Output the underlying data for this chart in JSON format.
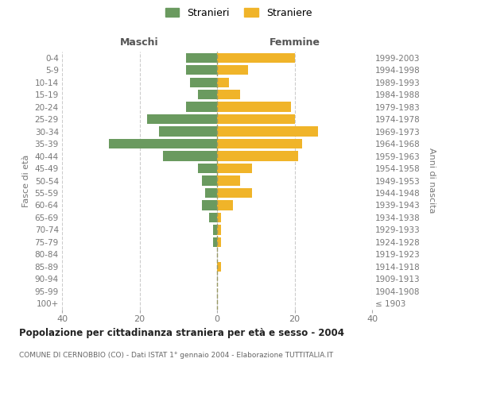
{
  "age_groups": [
    "100+",
    "95-99",
    "90-94",
    "85-89",
    "80-84",
    "75-79",
    "70-74",
    "65-69",
    "60-64",
    "55-59",
    "50-54",
    "45-49",
    "40-44",
    "35-39",
    "30-34",
    "25-29",
    "20-24",
    "15-19",
    "10-14",
    "5-9",
    "0-4"
  ],
  "birth_years": [
    "≤ 1903",
    "1904-1908",
    "1909-1913",
    "1914-1918",
    "1919-1923",
    "1924-1928",
    "1929-1933",
    "1934-1938",
    "1939-1943",
    "1944-1948",
    "1949-1953",
    "1954-1958",
    "1959-1963",
    "1964-1968",
    "1969-1973",
    "1974-1978",
    "1979-1983",
    "1984-1988",
    "1989-1993",
    "1994-1998",
    "1999-2003"
  ],
  "maschi": [
    0,
    0,
    0,
    0,
    0,
    1,
    1,
    2,
    4,
    3,
    4,
    5,
    14,
    28,
    15,
    18,
    8,
    5,
    7,
    8,
    8
  ],
  "femmine": [
    0,
    0,
    0,
    1,
    0,
    1,
    1,
    1,
    4,
    9,
    6,
    9,
    21,
    22,
    26,
    20,
    19,
    6,
    3,
    8,
    20
  ],
  "maschi_color": "#6a9a5f",
  "femmine_color": "#f0b429",
  "title": "Popolazione per cittadinanza straniera per età e sesso - 2004",
  "subtitle": "COMUNE DI CERNOBBIO (CO) - Dati ISTAT 1° gennaio 2004 - Elaborazione TUTTITALIA.IT",
  "ylabel_left": "Fasce di età",
  "ylabel_right": "Anni di nascita",
  "xlabel_maschi": "Maschi",
  "xlabel_femmine": "Femmine",
  "legend_maschi": "Stranieri",
  "legend_femmine": "Straniere",
  "xlim": 40,
  "background_color": "#ffffff",
  "grid_color": "#cccccc"
}
